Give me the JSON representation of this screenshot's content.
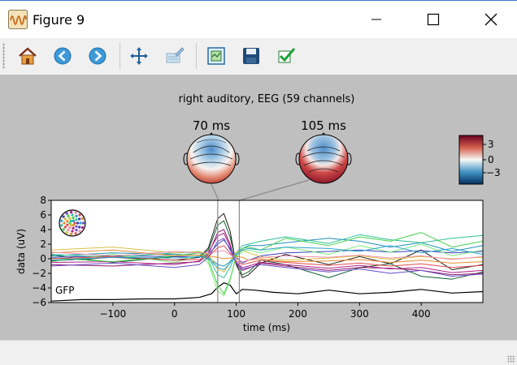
{
  "window": {
    "title": "Figure 9"
  },
  "toolbar": {
    "buttons": [
      {
        "name": "home-icon",
        "tip": "Home"
      },
      {
        "name": "back-icon",
        "tip": "Back"
      },
      {
        "name": "forward-icon",
        "tip": "Forward"
      },
      {
        "name": "pan-icon",
        "tip": "Pan"
      },
      {
        "name": "configure-icon",
        "tip": "Configure"
      },
      {
        "name": "zoom-icon",
        "tip": "Zoom"
      },
      {
        "name": "save-icon",
        "tip": "Save"
      },
      {
        "name": "check-icon",
        "tip": "Edit"
      }
    ]
  },
  "figure": {
    "title": "right auditory, EEG (59 channels)",
    "topomaps": [
      {
        "label": "70 ms",
        "time": 70
      },
      {
        "label": "105 ms",
        "time": 105
      }
    ],
    "colorbar": {
      "ticks": [
        "3",
        "0",
        "−3"
      ]
    },
    "plot": {
      "ylabel": "data (uV)",
      "xlabel": "time (ms)",
      "gfp_label": "GFP",
      "xticks": [
        "−100",
        "0",
        "100",
        "200",
        "300",
        "400"
      ],
      "yticks": [
        "8",
        "6",
        "4",
        "2",
        "0",
        "−2",
        "−4",
        "−6"
      ]
    }
  },
  "chart_data": {
    "type": "line",
    "title": "right auditory, EEG (59 channels)",
    "xlabel": "time (ms)",
    "ylabel": "data (uV)",
    "xlim": [
      -200,
      500
    ],
    "ylim": [
      -6,
      8
    ],
    "xticks": [
      -100,
      0,
      100,
      200,
      300,
      400
    ],
    "yticks": [
      -6,
      -4,
      -2,
      0,
      2,
      4,
      6,
      8
    ],
    "markers_ms": [
      70,
      105
    ],
    "channel_count": 59,
    "series": [
      {
        "name": "GFP",
        "color": "#000000",
        "x": [
          -200,
          -150,
          -100,
          -50,
          0,
          40,
          60,
          70,
          80,
          90,
          100,
          110,
          130,
          160,
          200,
          250,
          300,
          350,
          400,
          450,
          500
        ],
        "y": [
          -5.8,
          -5.6,
          -5.6,
          -5.5,
          -5.5,
          -5.3,
          -4.8,
          -3.9,
          -3.3,
          -3.6,
          -4.8,
          -4.2,
          -4.3,
          -4.6,
          -4.8,
          -4.3,
          -4.8,
          -4.6,
          -4.2,
          -4.7,
          -4.5
        ]
      },
      {
        "color": "#1a1a1a",
        "x": [
          -200,
          -100,
          0,
          40,
          55,
          70,
          80,
          90,
          100,
          110,
          120,
          140,
          180,
          250,
          300,
          350,
          400,
          450,
          500
        ],
        "y": [
          -0.3,
          0.2,
          -0.2,
          0.2,
          1.5,
          5.5,
          6.2,
          3.8,
          -0.8,
          -2.6,
          -2.2,
          -0.6,
          0.6,
          -0.8,
          0.3,
          -0.7,
          1.2,
          -1.5,
          -0.8
        ]
      },
      {
        "color": "#0d5c2e",
        "x": [
          -200,
          -100,
          0,
          40,
          55,
          70,
          80,
          90,
          100,
          110,
          120,
          140,
          180,
          250,
          300,
          350,
          400,
          450,
          500
        ],
        "y": [
          0.5,
          -0.5,
          0.3,
          0.2,
          1.2,
          4.6,
          5.2,
          3.0,
          -0.5,
          -2.2,
          -1.8,
          -0.2,
          -0.8,
          -2.6,
          -1.2,
          -0.7,
          -2.4,
          -2.8,
          -1.8
        ]
      },
      {
        "color": "#8c1a6a",
        "x": [
          -200,
          -100,
          0,
          40,
          55,
          70,
          80,
          90,
          100,
          110,
          120,
          140,
          180,
          250,
          300,
          350,
          400,
          450,
          500
        ],
        "y": [
          -0.8,
          -1.0,
          -0.6,
          -0.4,
          0.6,
          3.6,
          4.0,
          2.0,
          -0.8,
          -1.6,
          -1.3,
          -0.6,
          -1.0,
          -1.6,
          -1.2,
          -1.3,
          -1.6,
          -2.2,
          -2.0
        ]
      },
      {
        "color": "#b0218a",
        "x": [
          -200,
          -100,
          0,
          40,
          55,
          70,
          80,
          90,
          100,
          110,
          120,
          140,
          180,
          250,
          300,
          350,
          400,
          450,
          500
        ],
        "y": [
          -0.5,
          -0.4,
          -0.8,
          -0.3,
          0.9,
          3.1,
          3.5,
          1.7,
          -0.5,
          -1.2,
          -1.0,
          -0.5,
          -0.8,
          -1.3,
          -0.9,
          -1.4,
          -1.2,
          -1.9,
          -1.6
        ]
      },
      {
        "color": "#3a3fb8",
        "x": [
          -200,
          -100,
          0,
          40,
          55,
          70,
          80,
          90,
          100,
          110,
          120,
          140,
          180,
          250,
          300,
          350,
          400,
          450,
          500
        ],
        "y": [
          0.2,
          0.4,
          0.3,
          0.2,
          0.6,
          2.0,
          2.6,
          1.4,
          0.2,
          -0.6,
          -0.2,
          0.4,
          0.8,
          1.0,
          1.2,
          0.9,
          1.1,
          0.8,
          1.0
        ]
      },
      {
        "color": "#1f8fb8",
        "x": [
          -200,
          -100,
          0,
          40,
          55,
          70,
          80,
          90,
          100,
          110,
          120,
          140,
          180,
          250,
          300,
          350,
          400,
          450,
          500
        ],
        "y": [
          0.4,
          0.8,
          0.6,
          0.5,
          0.2,
          -0.8,
          -1.0,
          -0.4,
          0.8,
          1.4,
          1.8,
          1.8,
          2.2,
          2.8,
          2.4,
          1.6,
          2.2,
          1.0,
          1.8
        ]
      },
      {
        "color": "#2fbf9a",
        "x": [
          -200,
          -100,
          0,
          40,
          55,
          70,
          80,
          90,
          100,
          110,
          120,
          140,
          180,
          250,
          300,
          350,
          400,
          450,
          500
        ],
        "y": [
          0.6,
          0.2,
          0.8,
          0.9,
          0.3,
          -2.2,
          -2.6,
          -1.2,
          0.8,
          1.8,
          2.0,
          2.4,
          3.0,
          2.1,
          3.3,
          2.6,
          2.2,
          2.8,
          3.2
        ]
      },
      {
        "color": "#44d04a",
        "x": [
          -200,
          -100,
          0,
          40,
          55,
          70,
          80,
          90,
          100,
          110,
          120,
          140,
          180,
          250,
          300,
          350,
          400,
          450,
          500
        ],
        "y": [
          0.1,
          -0.4,
          0.4,
          0.8,
          -0.2,
          -3.6,
          -4.8,
          -2.8,
          0.4,
          1.4,
          1.6,
          1.2,
          2.8,
          1.8,
          3.0,
          2.4,
          3.6,
          1.6,
          2.4
        ]
      },
      {
        "color": "#7ee87e",
        "x": [
          -200,
          -100,
          0,
          40,
          55,
          70,
          80,
          90,
          100,
          110,
          120,
          140,
          180,
          250,
          300,
          350,
          400,
          450,
          500
        ],
        "y": [
          -0.4,
          0.6,
          -0.5,
          0.4,
          -0.6,
          -4.4,
          -5.1,
          -3.0,
          0.2,
          1.0,
          1.2,
          0.8,
          1.6,
          0.6,
          1.8,
          0.9,
          2.0,
          0.4,
          1.2
        ]
      },
      {
        "color": "#d8c040",
        "x": [
          -200,
          -100,
          0,
          40,
          55,
          70,
          80,
          90,
          100,
          110,
          120,
          140,
          180,
          250,
          300,
          350,
          400,
          450,
          500
        ],
        "y": [
          1.2,
          1.6,
          0.8,
          1.0,
          0.6,
          -1.4,
          -1.8,
          -0.6,
          0.9,
          1.2,
          0.8,
          0.3,
          -0.2,
          0.1,
          0.4,
          -0.1,
          0.3,
          0.0,
          0.2
        ]
      },
      {
        "color": "#e88a2e",
        "x": [
          -200,
          -100,
          0,
          40,
          55,
          70,
          80,
          90,
          100,
          110,
          120,
          140,
          180,
          250,
          300,
          350,
          400,
          450,
          500
        ],
        "y": [
          0.8,
          1.2,
          0.4,
          0.5,
          0.4,
          0.2,
          0.0,
          0.1,
          0.3,
          0.2,
          -0.2,
          0.0,
          -0.4,
          -0.3,
          -0.1,
          -0.5,
          -0.2,
          -0.6,
          -0.4
        ]
      },
      {
        "color": "#e24a4a",
        "x": [
          -200,
          -100,
          0,
          40,
          55,
          70,
          80,
          90,
          100,
          110,
          120,
          140,
          180,
          250,
          300,
          350,
          400,
          450,
          500
        ],
        "y": [
          0.0,
          0.3,
          -0.2,
          -0.1,
          0.3,
          1.5,
          1.8,
          0.8,
          -0.3,
          -0.8,
          -0.6,
          -0.2,
          -0.5,
          -0.9,
          -0.6,
          -1.0,
          -0.7,
          -1.2,
          -0.9
        ]
      },
      {
        "color": "#f090b0",
        "x": [
          -200,
          -100,
          0,
          40,
          55,
          70,
          80,
          90,
          100,
          110,
          120,
          140,
          180,
          250,
          300,
          350,
          400,
          450,
          500
        ],
        "y": [
          0.9,
          0.4,
          1.0,
          0.8,
          0.8,
          1.0,
          1.1,
          0.6,
          0.0,
          -0.4,
          -0.2,
          0.2,
          0.4,
          0.2,
          0.5,
          0.1,
          0.4,
          -0.1,
          0.3
        ]
      },
      {
        "color": "#6a4cc8",
        "x": [
          -200,
          -100,
          0,
          40,
          55,
          70,
          80,
          90,
          100,
          110,
          120,
          140,
          180,
          250,
          300,
          350,
          400,
          450,
          500
        ],
        "y": [
          -1.0,
          -0.6,
          -1.2,
          -0.8,
          0.2,
          2.4,
          2.8,
          1.2,
          -0.6,
          -1.4,
          -1.2,
          -0.8,
          -1.2,
          -1.8,
          -1.4,
          -2.0,
          -1.6,
          -2.4,
          -2.1
        ]
      },
      {
        "color": "#27a3c9",
        "x": [
          -200,
          -100,
          0,
          40,
          55,
          70,
          80,
          90,
          100,
          110,
          120,
          140,
          180,
          250,
          300,
          350,
          400,
          450,
          500
        ],
        "y": [
          -0.2,
          0.2,
          0.1,
          0.3,
          0.0,
          -1.2,
          -1.5,
          -0.6,
          0.6,
          1.2,
          1.4,
          1.2,
          1.6,
          1.4,
          1.0,
          1.8,
          0.8,
          1.4,
          0.6
        ]
      }
    ]
  }
}
